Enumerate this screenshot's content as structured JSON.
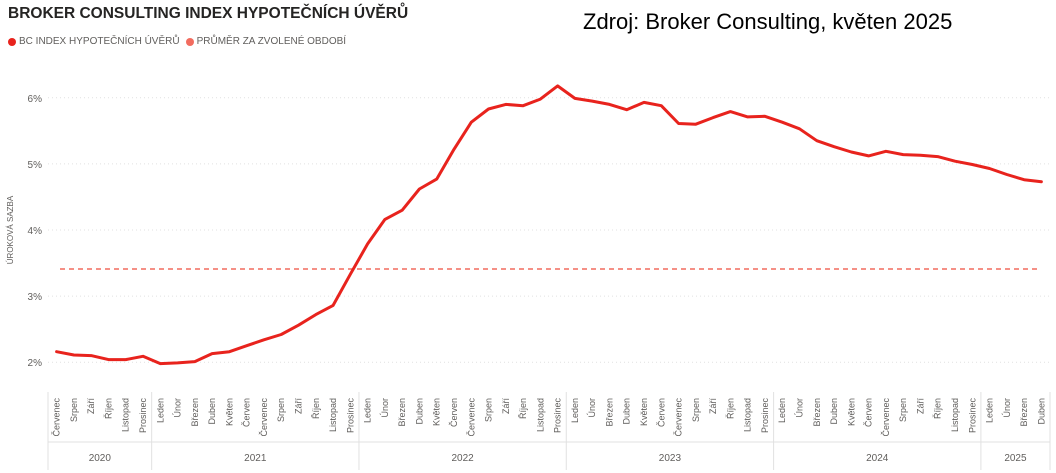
{
  "header": {
    "title": "BROKER CONSULTING INDEX HYPOTEČNÍCH ÚVĚRŮ",
    "source": "Zdroj: Broker Consulting, květen 2025"
  },
  "colors": {
    "series": "#e8231d",
    "average": "#f26c5f",
    "text": "#605e5c"
  },
  "chart_data": {
    "type": "line",
    "ylabel": "ÚROKOVÁ SAZBA",
    "y_ticks": [
      "2%",
      "3%",
      "4%",
      "5%",
      "6%"
    ],
    "y_tick_values": [
      2,
      3,
      4,
      5,
      6
    ],
    "ylim": [
      1.55,
      6.45
    ],
    "grid": true,
    "legend_position": "top-left",
    "legend": [
      {
        "label": "BC INDEX HYPOTEČNÍCH ÚVĚRŮ",
        "color": "#e8231d"
      },
      {
        "label": "PRŮMĚR ZA ZVOLENÉ OBDOBÍ",
        "color": "#f26c5f"
      }
    ],
    "x_labels": [
      "Červenec",
      "Srpen",
      "Září",
      "Říjen",
      "Listopad",
      "Prosinec",
      "Leden",
      "Únor",
      "Březen",
      "Duben",
      "Květen",
      "Červen",
      "Červenec",
      "Srpen",
      "Září",
      "Říjen",
      "Listopad",
      "Prosinec",
      "Leden",
      "Únor",
      "Březen",
      "Duben",
      "Květen",
      "Červen",
      "Červenec",
      "Srpen",
      "Září",
      "Říjen",
      "Listopad",
      "Prosinec",
      "Leden",
      "Únor",
      "Březen",
      "Duben",
      "Květen",
      "Červen",
      "Červenec",
      "Srpen",
      "Září",
      "Říjen",
      "Listopad",
      "Prosinec",
      "Leden",
      "Únor",
      "Březen",
      "Duben",
      "Květen",
      "Červen",
      "Červenec",
      "Srpen",
      "Září",
      "Říjen",
      "Listopad",
      "Prosinec",
      "Leden",
      "Únor",
      "Březen",
      "Duben"
    ],
    "years": [
      {
        "label": "2020",
        "count": 6
      },
      {
        "label": "2021",
        "count": 12
      },
      {
        "label": "2022",
        "count": 12
      },
      {
        "label": "2023",
        "count": 12
      },
      {
        "label": "2024",
        "count": 12
      },
      {
        "label": "2025",
        "count": 4
      }
    ],
    "series": [
      {
        "name": "BC INDEX HYPOTEČNÍCH ÚVĚRŮ",
        "values": [
          2.16,
          2.11,
          2.1,
          2.04,
          2.04,
          2.09,
          1.98,
          1.99,
          2.01,
          2.13,
          2.16,
          2.25,
          2.34,
          2.42,
          2.56,
          2.72,
          2.86,
          3.33,
          3.79,
          4.16,
          4.3,
          4.62,
          4.77,
          5.22,
          5.63,
          5.83,
          5.9,
          5.88,
          5.98,
          6.18,
          5.99,
          5.95,
          5.9,
          5.82,
          5.93,
          5.88,
          5.61,
          5.6,
          5.7,
          5.79,
          5.71,
          5.72,
          5.63,
          5.53,
          5.35,
          5.26,
          5.18,
          5.12,
          5.19,
          5.14,
          5.13,
          5.11,
          5.04,
          4.99,
          4.93,
          4.84,
          4.76,
          4.73
        ]
      },
      {
        "name": "PRŮMĚR ZA ZVOLENÉ OBDOBÍ",
        "constant": 3.41
      }
    ]
  }
}
